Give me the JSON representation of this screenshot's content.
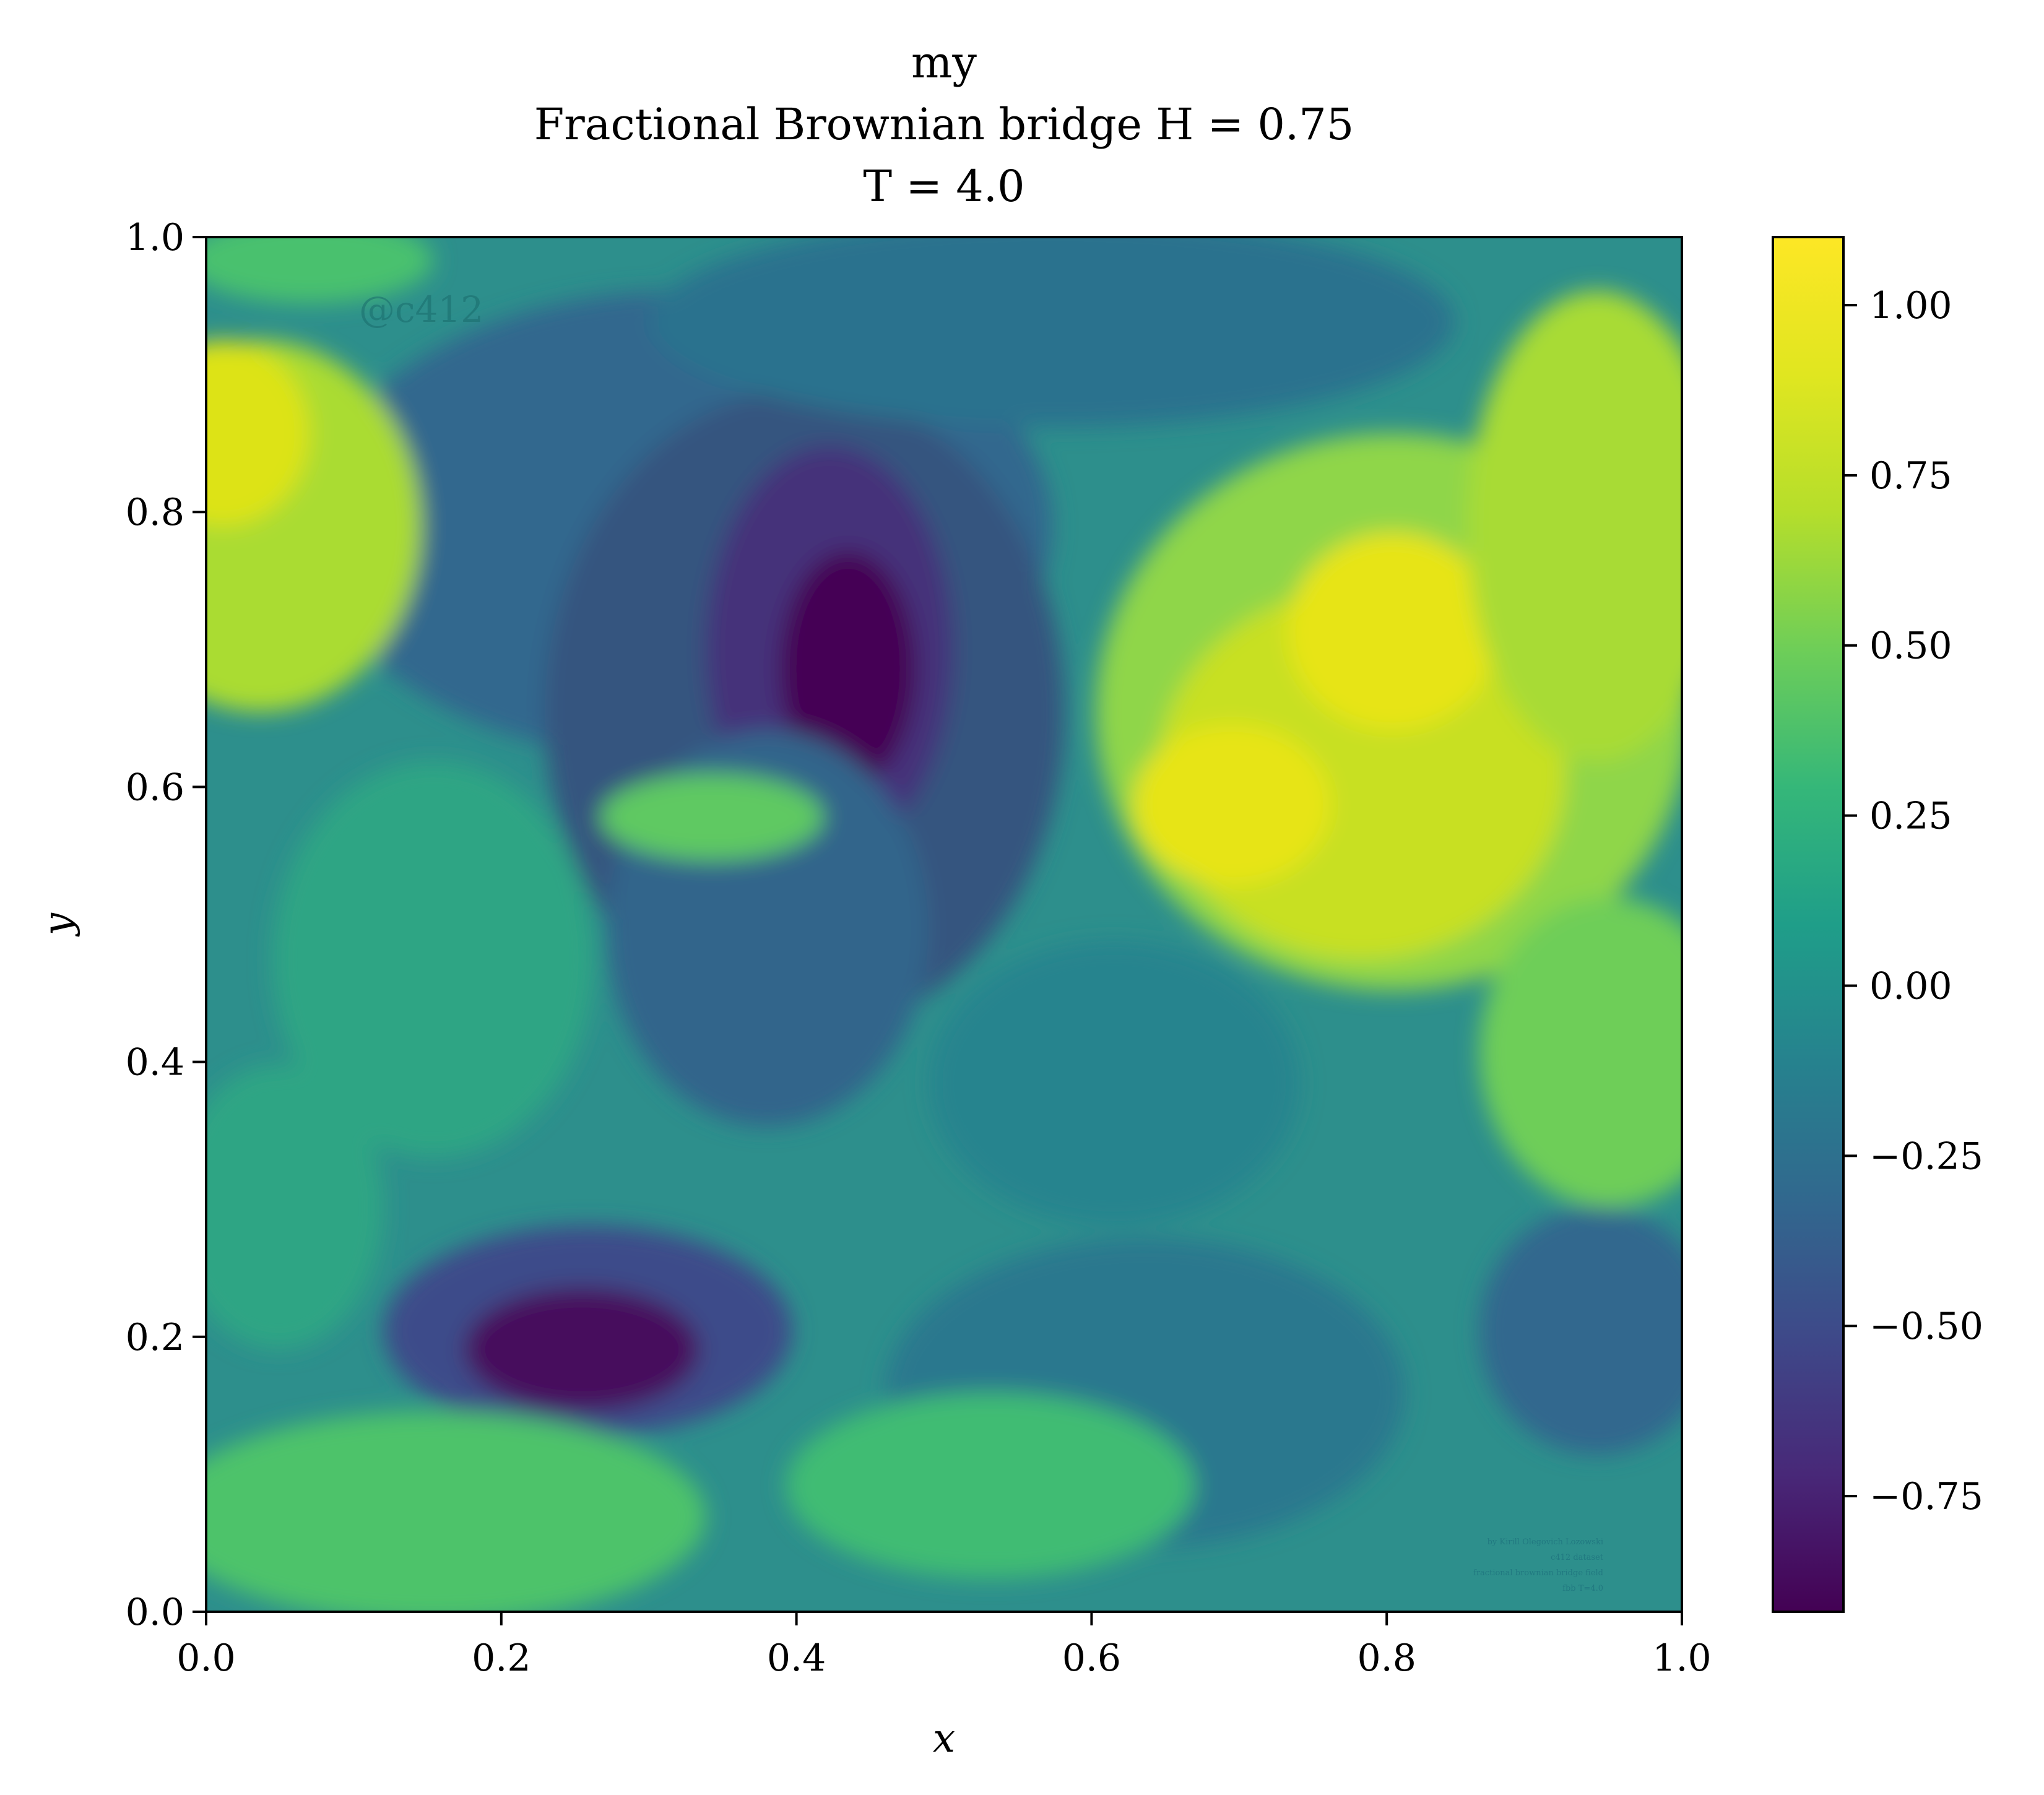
{
  "chart_data": {
    "type": "heatmap",
    "title_lines": [
      "my",
      "Fractional Brownian bridge H = 0.75",
      "T = 4.0"
    ],
    "xlabel": "x",
    "ylabel": "y",
    "xlim": [
      0.0,
      1.0
    ],
    "ylim": [
      0.0,
      1.0
    ],
    "xticks": [
      "0.0",
      "0.2",
      "0.4",
      "0.6",
      "0.8",
      "1.0"
    ],
    "yticks": [
      "0.0",
      "0.2",
      "0.4",
      "0.6",
      "0.8",
      "1.0"
    ],
    "colormap": "viridis",
    "colorbar": {
      "range": [
        -0.92,
        1.1
      ],
      "ticks": [
        1.0,
        0.75,
        0.5,
        0.25,
        0.0,
        -0.25,
        -0.5,
        -0.75
      ],
      "tick_labels": [
        "1.00",
        "0.75",
        "0.50",
        "0.25",
        "0.00",
        "−0.25",
        "−0.50",
        "−0.75"
      ]
    },
    "grid": false,
    "watermark": "@c412",
    "credit_lines": [
      "by Kirill Olegovich Lozowski",
      "c412 dataset",
      "fractional brownian bridge field",
      "fbb T=4.0"
    ],
    "features": [
      {
        "x": 0.43,
        "y": 0.7,
        "value": -0.9,
        "desc": "dark minimum upper-center"
      },
      {
        "x": 0.28,
        "y": 0.19,
        "value": -0.9,
        "desc": "dark minimum lower-left"
      },
      {
        "x": 0.7,
        "y": 0.58,
        "value": 1.05,
        "desc": "bright maximum"
      },
      {
        "x": 0.8,
        "y": 0.55,
        "value": 1.1,
        "desc": "bright maximum"
      },
      {
        "x": 0.02,
        "y": 0.86,
        "value": 0.95,
        "desc": "bright left edge"
      },
      {
        "x": 0.8,
        "y": 0.68,
        "value": 1.05,
        "desc": "bright maximum"
      }
    ]
  }
}
